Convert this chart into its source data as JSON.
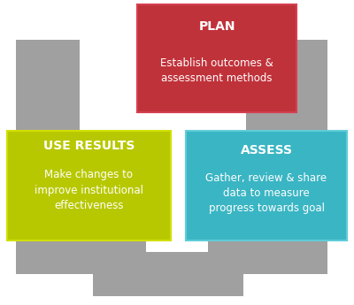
{
  "background_color": "#ffffff",
  "gray_color": "#a0a0a0",
  "plan_box_color": "#c0323a",
  "plan_border_color": "#d44050",
  "assess_box_color": "#3ab5c3",
  "assess_border_color": "#5ecdd8",
  "use_box_color": "#b8c800",
  "use_border_color": "#d0e000",
  "plan_title": "PLAN",
  "plan_text": "Establish outcomes &\nassessment methods",
  "assess_title": "ASSESS",
  "assess_text": "Gather, review & share\ndata to measure\nprogress towards goal",
  "use_title": "USE RESULTS",
  "use_text": "Make changes to\nimprove institutional\neffectiveness",
  "text_color": "#ffffff",
  "title_fontsize": 10,
  "body_fontsize": 8.5,
  "fig_width": 4.0,
  "fig_height": 3.45,
  "dpi": 100
}
